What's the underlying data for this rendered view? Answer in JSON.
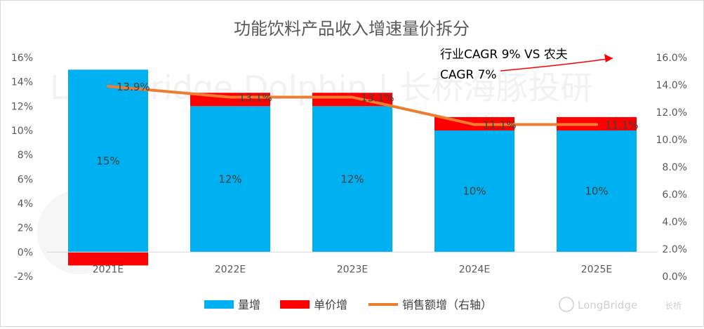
{
  "chart_data": {
    "type": "bar",
    "title": "功能饮料产品收入增速量价拆分",
    "categories": [
      "2021E",
      "2022E",
      "2023E",
      "2024E",
      "2025E"
    ],
    "series": [
      {
        "name": "量增",
        "type": "bar",
        "axis": "left",
        "stacked": true,
        "color": "#00b0f0",
        "values": [
          15,
          12,
          12,
          10,
          10
        ],
        "labels": [
          "15%",
          "12%",
          "12%",
          "10%",
          "10%"
        ]
      },
      {
        "name": "单价增",
        "type": "bar",
        "axis": "left",
        "stacked": true,
        "color": "#ff0000",
        "values": [
          -1.1,
          1.1,
          1.1,
          1.1,
          1.1
        ]
      },
      {
        "name": "销售额增（右轴）",
        "type": "line",
        "axis": "right",
        "color": "#ed7d31",
        "values": [
          13.9,
          13.1,
          13.1,
          11.1,
          11.1
        ],
        "labels": [
          "13.9%",
          "13.1%",
          "13.1%",
          "11.1%",
          "11.1%"
        ]
      }
    ],
    "y_left": {
      "ylim": [
        -2,
        16
      ],
      "ticks": [
        "16%",
        "14%",
        "12%",
        "10%",
        "8%",
        "6%",
        "4%",
        "2%",
        "0%",
        "-2%"
      ]
    },
    "y_right": {
      "ylim": [
        0,
        16
      ],
      "ticks": [
        "16.0%",
        "14.0%",
        "12.0%",
        "10.0%",
        "8.0%",
        "6.0%",
        "4.0%",
        "2.0%",
        "0.0%"
      ]
    },
    "annotation": {
      "line1": "行业CAGR 9% VS 农夫",
      "line2": "CAGR 7%",
      "color": "#ff0000"
    },
    "watermark": "LongBridge Dolphin | 长桥海豚投研",
    "brand": {
      "name": "LongBridge",
      "sub": "长桥"
    },
    "grid": false,
    "legend_position": "bottom"
  }
}
